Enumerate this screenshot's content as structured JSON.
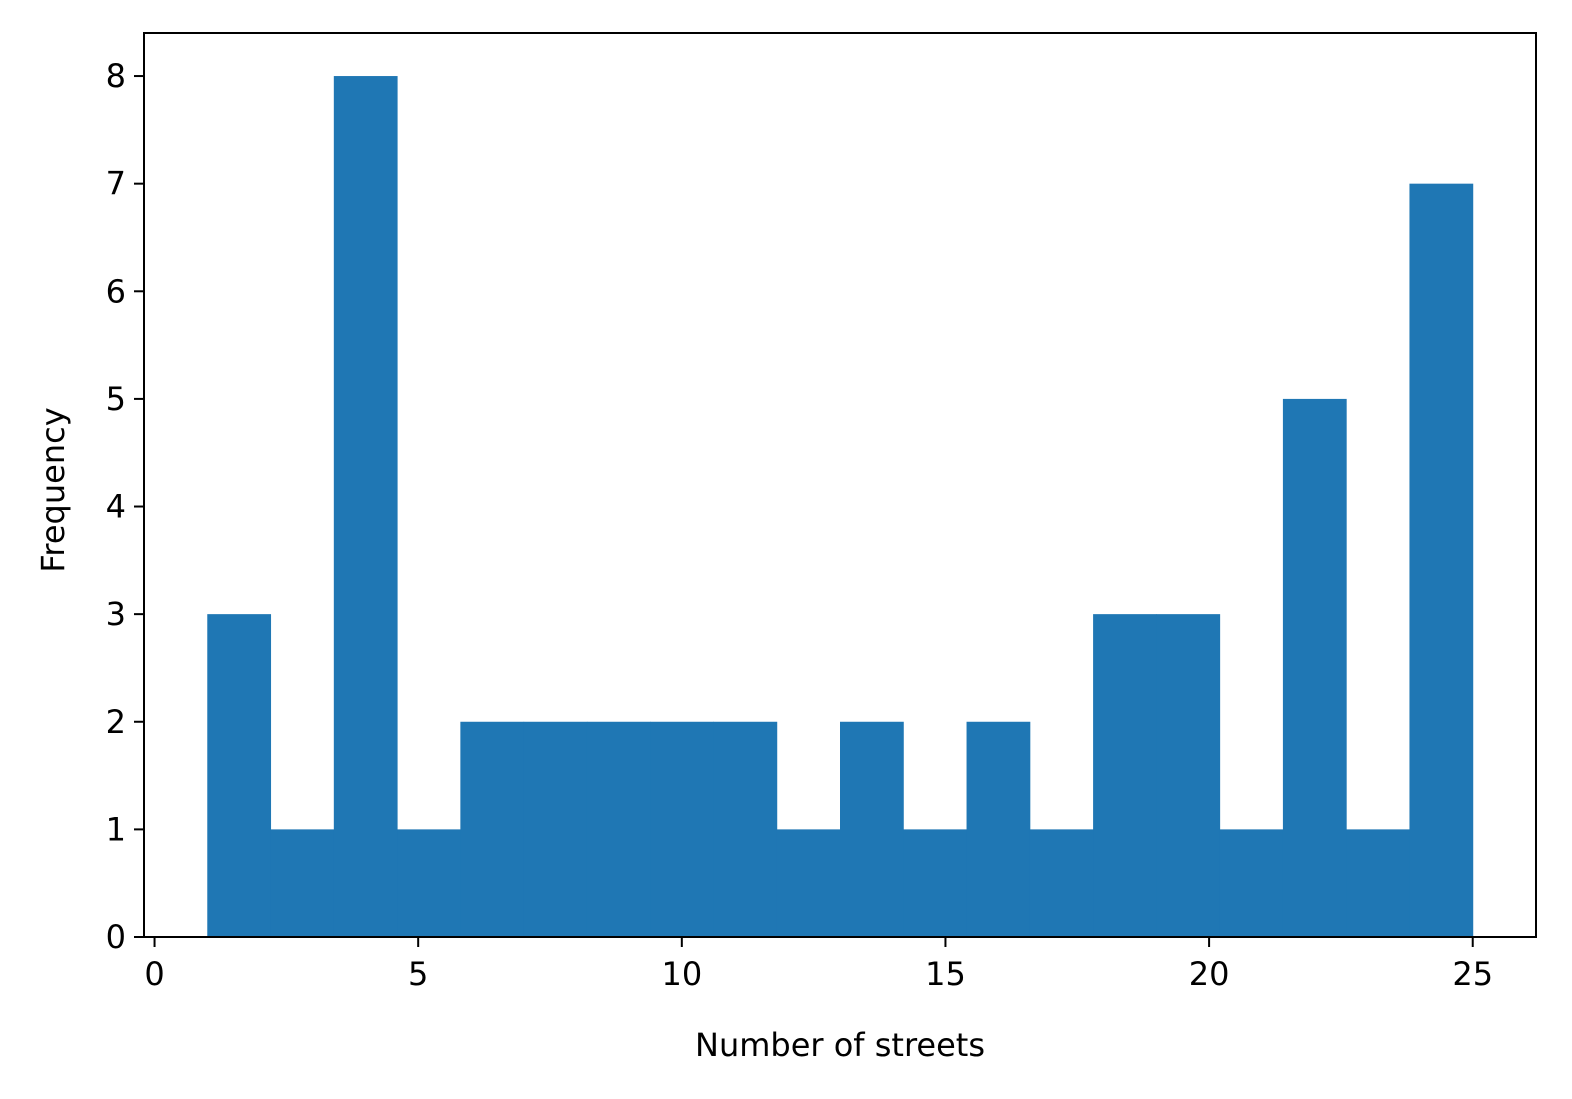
{
  "chart_data": {
    "type": "bar",
    "title": "",
    "xlabel": "Number of streets",
    "ylabel": "Frequency",
    "xlim": [
      -0.2,
      26.2
    ],
    "ylim": [
      0,
      8.4
    ],
    "xticks": [
      0,
      5,
      10,
      15,
      20,
      25
    ],
    "yticks": [
      0,
      1,
      2,
      3,
      4,
      5,
      6,
      7,
      8
    ],
    "bin_edges": [
      1.0,
      2.2,
      3.4,
      4.6,
      5.8,
      7.0,
      8.2,
      9.4,
      10.6,
      11.8,
      13.0,
      14.2,
      15.4,
      16.6,
      17.8,
      19.0,
      20.2,
      21.4,
      22.6,
      23.8,
      25.0
    ],
    "values": [
      3,
      1,
      8,
      1,
      2,
      2,
      2,
      2,
      2,
      1,
      2,
      1,
      2,
      1,
      3,
      3,
      1,
      5,
      1,
      7
    ],
    "bar_color": "#1f77b4",
    "grid": false,
    "legend": false
  }
}
